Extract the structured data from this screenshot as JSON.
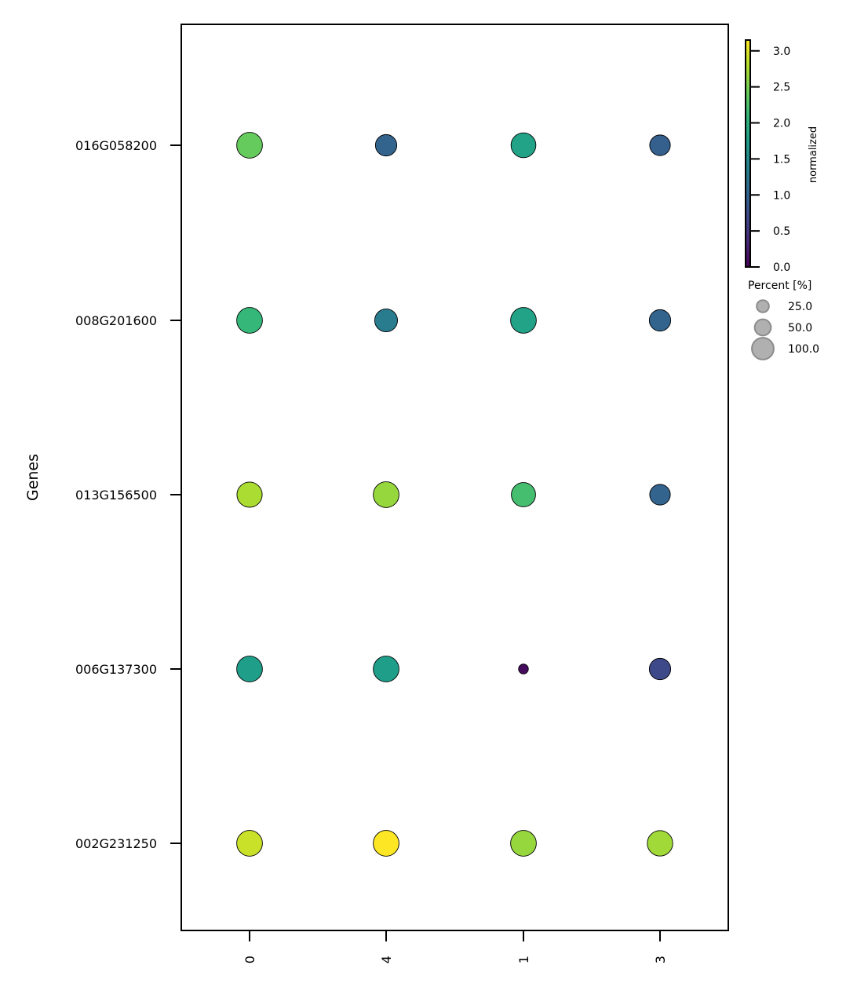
{
  "chart_data": {
    "type": "dotplot",
    "ylabel": "Genes",
    "categories": [
      "0",
      "4",
      "1",
      "3"
    ],
    "genes": [
      "016G058200",
      "008G201600",
      "013G156500",
      "006G137300",
      "002G231250"
    ],
    "values": [
      [
        2.4,
        1.0,
        1.8,
        0.95
      ],
      [
        2.1,
        1.3,
        1.8,
        1.0
      ],
      [
        2.75,
        2.65,
        2.2,
        1.0
      ],
      [
        1.75,
        1.75,
        0.1,
        0.7
      ],
      [
        2.9,
        3.15,
        2.65,
        2.7
      ]
    ],
    "percents": [
      [
        92,
        60,
        85,
        55
      ],
      [
        92,
        70,
        92,
        60
      ],
      [
        88,
        92,
        80,
        55
      ],
      [
        92,
        92,
        8,
        60
      ],
      [
        92,
        92,
        92,
        90
      ]
    ],
    "colorbar": {
      "label": "normalized",
      "vmin": 0,
      "vmax": 3.15,
      "ticks": [
        "0.0",
        "0.5",
        "1.0",
        "1.5",
        "2.0",
        "2.5",
        "3.0"
      ],
      "tick_values": [
        0,
        0.5,
        1.0,
        1.5,
        2.0,
        2.5,
        3.0
      ]
    },
    "size_legend": {
      "title": "Percent [%]",
      "labels": [
        "25.0",
        "50.0",
        "100.0"
      ],
      "values": [
        25,
        50,
        100
      ]
    },
    "colors": {
      "viridis": [
        "#440154",
        "#482878",
        "#3e4989",
        "#31688e",
        "#26828e",
        "#1f9e89",
        "#35b779",
        "#6ece58",
        "#b5de2b",
        "#fde725"
      ],
      "marker_edge": "#000000",
      "legend_marker": "#b0b0b0",
      "legend_edge": "#8c8c8c"
    }
  }
}
